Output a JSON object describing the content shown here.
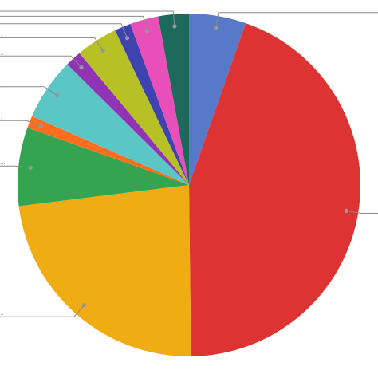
{
  "chart_data": {
    "type": "pie",
    "title": "",
    "start_angle_deg": 0,
    "direction": "clockwise",
    "slices": [
      {
        "value": 5.6,
        "color": "#5878c8",
        "label": ""
      },
      {
        "value": 46.3,
        "color": "#dd3333",
        "label": ""
      },
      {
        "value": 24.2,
        "color": "#f0ad13",
        "label": ""
      },
      {
        "value": 7.7,
        "color": "#34a451",
        "label": ""
      },
      {
        "value": 1.2,
        "color": "#ff6d1f",
        "label": ""
      },
      {
        "value": 6.1,
        "color": "#5cc6c6",
        "label": ""
      },
      {
        "value": 1.6,
        "color": "#9033b5",
        "label": ""
      },
      {
        "value": 4.1,
        "color": "#b7c125",
        "label": ""
      },
      {
        "value": 1.6,
        "color": "#3f43b0",
        "label": ""
      },
      {
        "value": 2.8,
        "color": "#e94fb9",
        "label": ""
      },
      {
        "value": 3.0,
        "color": "#1d6a5b",
        "label": ""
      }
    ],
    "labels_side": "outside",
    "leader_lines": true,
    "legend": "none",
    "edge_labels": [
      "..",
      "...",
      ".",
      ".",
      "..",
      ".",
      ""
    ]
  }
}
